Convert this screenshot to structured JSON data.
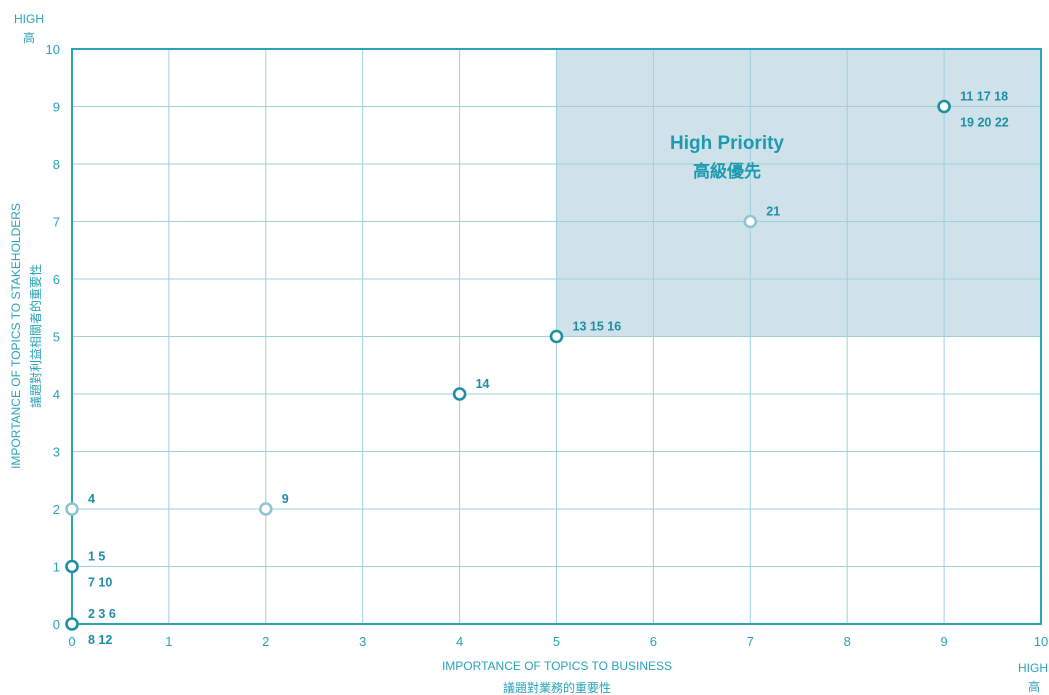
{
  "chart_data": {
    "type": "scatter",
    "xlim": [
      0,
      10
    ],
    "ylim": [
      0,
      10
    ],
    "x_ticks": [
      "0",
      "1",
      "2",
      "3",
      "4",
      "5",
      "6",
      "7",
      "8",
      "9",
      "10"
    ],
    "y_ticks": [
      "0",
      "1",
      "2",
      "3",
      "4",
      "5",
      "6",
      "7",
      "8",
      "9",
      "10"
    ],
    "grid": true,
    "xlabel": "IMPORTANCE OF TOPICS TO BUSINESS",
    "xlabel_zh": "議題對業務的重要性",
    "ylabel": "IMPORTANCE OF TOPICS TO STAKEHOLDERS",
    "ylabel_zh": "議題對利益相關者的重要性",
    "x_high": "HIGH",
    "x_high_zh": "高",
    "y_high": "HIGH",
    "y_high_zh": "高",
    "region": {
      "title": "High Priority",
      "subtitle": "高級優先",
      "x_range": [
        5,
        10
      ],
      "y_range": [
        5,
        10
      ],
      "color": "#cfe2ea"
    },
    "colors": {
      "dark": "#1e8ea4",
      "light": "#8fc4d2",
      "axis": "#2aa3b8"
    },
    "points": [
      {
        "x": 0,
        "y": 0,
        "style": "dark",
        "line1": "2 3 6",
        "line2": "8 12"
      },
      {
        "x": 0,
        "y": 1,
        "style": "dark",
        "line1": "1 5",
        "line2": "7 10"
      },
      {
        "x": 0,
        "y": 2,
        "style": "light",
        "line1": "4",
        "line2": ""
      },
      {
        "x": 2,
        "y": 2,
        "style": "light",
        "line1": "9",
        "line2": ""
      },
      {
        "x": 4,
        "y": 4,
        "style": "dark",
        "line1": "14",
        "line2": ""
      },
      {
        "x": 5,
        "y": 5,
        "style": "dark",
        "line1": "13 15 16",
        "line2": ""
      },
      {
        "x": 7,
        "y": 7,
        "style": "light",
        "line1": "21",
        "line2": ""
      },
      {
        "x": 9,
        "y": 9,
        "style": "dark",
        "line1": "11 17 18",
        "line2": "19 20 22"
      }
    ]
  }
}
